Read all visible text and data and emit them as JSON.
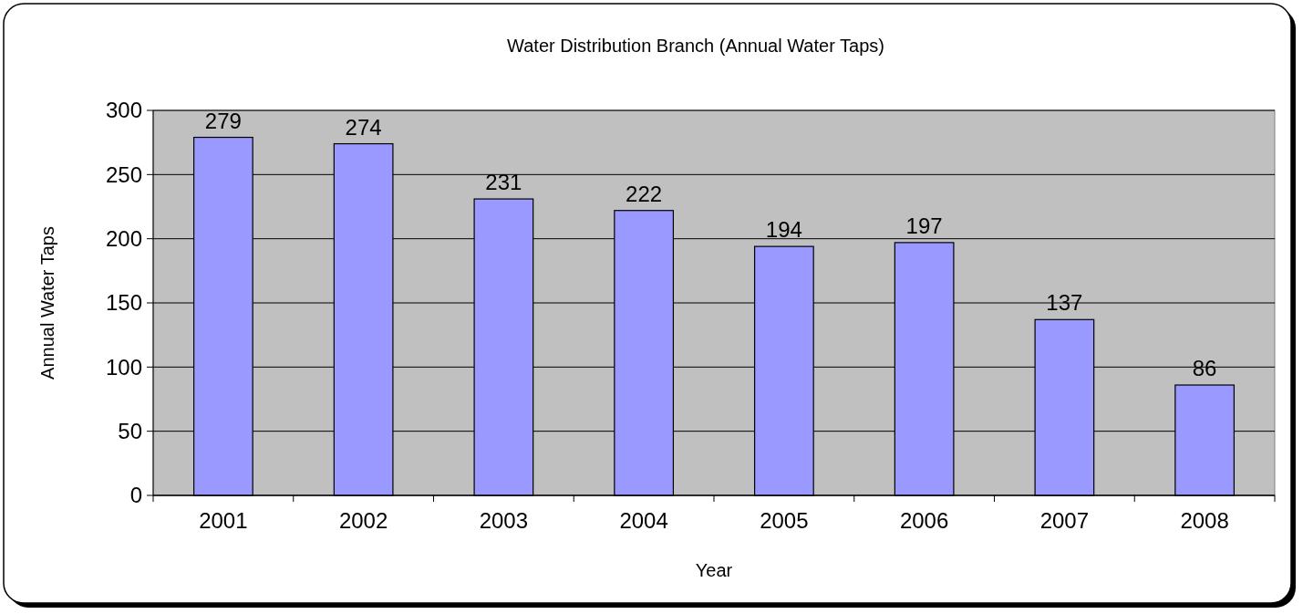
{
  "chart_data": {
    "type": "bar",
    "title": "Water Distribution Branch (Annual Water Taps)",
    "xlabel": "Year",
    "ylabel": "Annual Water Taps",
    "categories": [
      "2001",
      "2002",
      "2003",
      "2004",
      "2005",
      "2006",
      "2007",
      "2008"
    ],
    "values": [
      279,
      274,
      231,
      222,
      194,
      197,
      137,
      86
    ],
    "color": "#9999ff",
    "ylim": [
      0,
      300
    ],
    "yticks": [
      0,
      50,
      100,
      150,
      200,
      250,
      300
    ],
    "grid": "y",
    "data_labels": true
  }
}
